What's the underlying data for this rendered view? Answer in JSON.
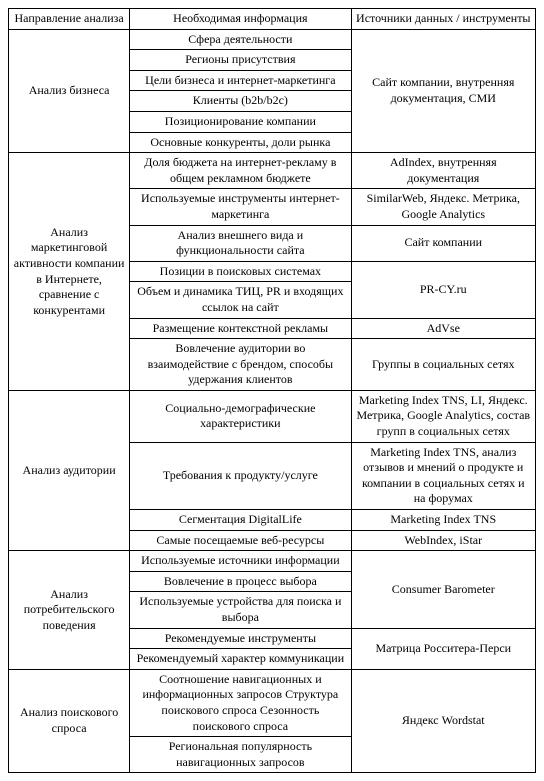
{
  "headers": {
    "c1": "Направление анализа",
    "c2": "Необходимая информация",
    "c3": "Источники данных / инструменты"
  },
  "section1": {
    "label": "Анализ бизнеса",
    "items": {
      "i0": "Сфера деятельности",
      "i1": "Регионы присутствия",
      "i2": "Цели бизнеса и интернет-маркетинга",
      "i3": "Клиенты (b2b/b2c)",
      "i4": "Позиционирование компании",
      "i5": "Основные конкуренты, доли рынка"
    },
    "source": "Сайт компании, внутренняя документация, СМИ"
  },
  "section2": {
    "label": "Анализ маркетинговой активности компании в Интернете, сравнение с конкурентами",
    "items": {
      "i0": "Доля бюджета на интернет-рекламу в общем рекламном бюджете",
      "i1": "Используемые инструменты интернет-маркетинга",
      "i2": "Анализ внешнего вида и функциональности сайта",
      "i3": "Позиции в поисковых системах",
      "i4": "Объем и динамика ТИЦ, PR и входящих ссылок на сайт",
      "i5": "Размещение контекстной рекламы",
      "i6": "Вовлечение аудитории во взаимодействие с брендом, способы удержания клиентов"
    },
    "sources": {
      "s0": "AdIndex, внутренняя документация",
      "s1": "SimilarWeb, Яндекс. Метрика, Google Analytics",
      "s2": "Сайт компании",
      "s3_4": "PR-CY.ru",
      "s5": "AdVse",
      "s6": "Группы в социальных сетях"
    }
  },
  "section3": {
    "label": "Анализ аудитории",
    "items": {
      "i0": "Социально-демографические характеристики",
      "i1": "Требования к продукту/услуге",
      "i2": "Сегментация DigitalLife",
      "i3": "Самые посещаемые веб-ресурсы"
    },
    "sources": {
      "s0": "Marketing Index TNS, LI, Яндекс. Метрика, Google Analytics, состав групп в социальных сетях",
      "s1": "Marketing Index TNS, анализ отзывов и мнений о продукте и компании в социальных сетях и на форумах",
      "s2": "Marketing Index TNS",
      "s3": "WebIndex, iStar"
    }
  },
  "section4": {
    "label": "Анализ потребительского поведения",
    "items": {
      "i0": "Используемые источники информации",
      "i1": "Вовлечение в процесс выбора",
      "i2": "Используемые устройства для поиска и выбора",
      "i3": "Рекомендуемые инструменты",
      "i4": "Рекомендуемый характер коммуникации"
    },
    "sources": {
      "s0_2": "Consumer Barometer",
      "s3_4": "Матрица Росситера-Перси"
    }
  },
  "section5": {
    "label": "Анализ поискового спроса",
    "items": {
      "i0": "Соотношение навигационных и информационных запросов Структура поискового спроса Сезонность поискового спроса",
      "i1": "Региональная популярность навигационных запросов"
    },
    "source": "Яндекс Wordstat"
  }
}
